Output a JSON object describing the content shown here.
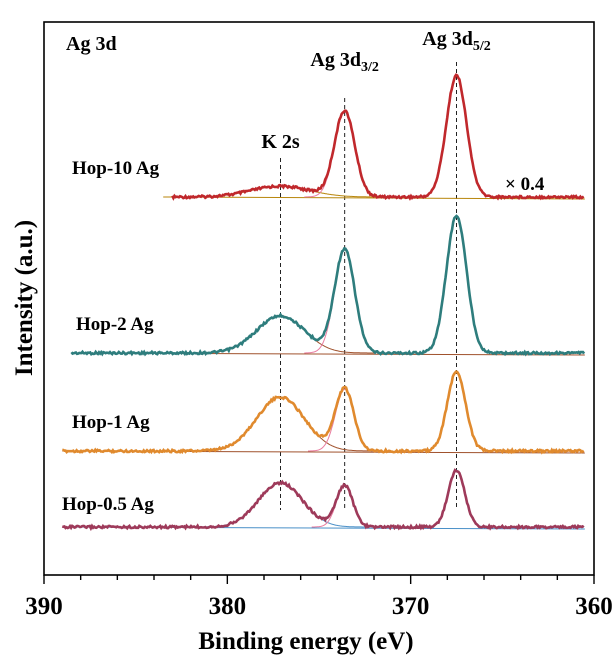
{
  "chart_data": {
    "type": "line",
    "title": "Ag 3d",
    "xlabel": "Binding energy (eV)",
    "ylabel": "Intensity (a.u.)",
    "xlim": [
      390,
      360
    ],
    "x_reversed": true,
    "y_tick_labels": false,
    "x_ticks": [
      390,
      380,
      370,
      360
    ],
    "x_tick_labels": [
      "390",
      "380",
      "370",
      "360"
    ],
    "peak_labels": [
      {
        "text": "K 2s",
        "x": 377.1
      },
      {
        "text": "Ag 3d",
        "sub": "3/2",
        "x": 373.6
      },
      {
        "text": "Ag 3d",
        "sub": "5/2",
        "x": 367.5
      }
    ],
    "scale_note": "× 0.4",
    "scale_note_series": "Hop-10 Ag",
    "series": [
      {
        "name": "Hop-10 Ag",
        "color": "#c0282c",
        "fit_color": "#b8860b",
        "range": [
          383,
          360.5
        ],
        "baseline": [
          0.0,
          0.0
        ],
        "peaks": [
          {
            "center": 377.1,
            "height": 0.012,
            "width": 1.6
          },
          {
            "center": 373.6,
            "height": 0.095,
            "width": 0.55
          },
          {
            "center": 367.5,
            "height": 0.135,
            "width": 0.55
          }
        ]
      },
      {
        "name": "Hop-2 Ag",
        "color": "#2e7d7d",
        "fit_color": "#a0522d",
        "range": [
          388.5,
          360.5
        ],
        "baseline": [
          0.0,
          0.0
        ],
        "peaks": [
          {
            "center": 377.1,
            "height": 0.038,
            "width": 1.3
          },
          {
            "center": 373.6,
            "height": 0.105,
            "width": 0.55
          },
          {
            "center": 367.5,
            "height": 0.14,
            "width": 0.55
          }
        ]
      },
      {
        "name": "Hop-1 Ag",
        "color": "#e08a2e",
        "fit_color": "#a0522d",
        "range": [
          389,
          360.5
        ],
        "baseline": [
          0.0,
          0.0
        ],
        "peaks": [
          {
            "center": 377.1,
            "height": 0.055,
            "width": 1.3
          },
          {
            "center": 373.6,
            "height": 0.063,
            "width": 0.5
          },
          {
            "center": 367.5,
            "height": 0.081,
            "width": 0.5
          }
        ]
      },
      {
        "name": "Hop-0.5 Ag",
        "color": "#9e3a5a",
        "fit_color": "#4a90c8",
        "range": [
          389,
          360.5
        ],
        "baseline": [
          0.0,
          0.0
        ],
        "peaks": [
          {
            "center": 377.1,
            "height": 0.045,
            "width": 1.2
          },
          {
            "center": 373.6,
            "height": 0.042,
            "width": 0.45
          },
          {
            "center": 367.5,
            "height": 0.058,
            "width": 0.45
          }
        ]
      }
    ]
  }
}
